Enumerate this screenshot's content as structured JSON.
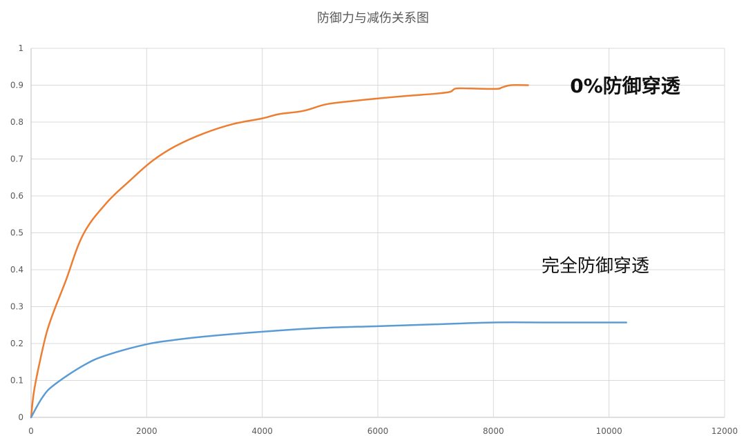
{
  "chart_data": {
    "type": "line",
    "title": "防御力与减伤关系图",
    "xlabel": "",
    "ylabel": "",
    "xlim": [
      0,
      12000
    ],
    "ylim": [
      0,
      1
    ],
    "x_ticks": [
      "0",
      "2000",
      "4000",
      "6000",
      "8000",
      "10000",
      "12000"
    ],
    "y_ticks": [
      "0",
      "0.1",
      "0.2",
      "0.3",
      "0.4",
      "0.5",
      "0.6",
      "0.7",
      "0.8",
      "0.9",
      "1"
    ],
    "grid": true,
    "legend": "none",
    "series": [
      {
        "annotation": "0%防御穿透",
        "color": "#ED7D31",
        "points": [
          [
            0,
            0
          ],
          [
            50,
            0.07
          ],
          [
            150,
            0.15
          ],
          [
            270,
            0.23
          ],
          [
            400,
            0.29
          ],
          [
            600,
            0.37
          ],
          [
            900,
            0.495
          ],
          [
            1300,
            0.58
          ],
          [
            1700,
            0.64
          ],
          [
            2100,
            0.695
          ],
          [
            2500,
            0.735
          ],
          [
            3000,
            0.77
          ],
          [
            3500,
            0.795
          ],
          [
            4000,
            0.81
          ],
          [
            4300,
            0.822
          ],
          [
            4700,
            0.83
          ],
          [
            5100,
            0.848
          ],
          [
            5500,
            0.856
          ],
          [
            6000,
            0.864
          ],
          [
            6500,
            0.871
          ],
          [
            7000,
            0.877
          ],
          [
            7250,
            0.882
          ],
          [
            7350,
            0.891
          ],
          [
            7600,
            0.891
          ],
          [
            8050,
            0.89
          ],
          [
            8150,
            0.894
          ],
          [
            8300,
            0.9
          ],
          [
            8600,
            0.9
          ]
        ]
      },
      {
        "annotation": "完全防御穿透",
        "color": "#5B9BD5",
        "points": [
          [
            0,
            0
          ],
          [
            200,
            0.055
          ],
          [
            400,
            0.088
          ],
          [
            900,
            0.14
          ],
          [
            1300,
            0.168
          ],
          [
            2000,
            0.198
          ],
          [
            2500,
            0.21
          ],
          [
            3000,
            0.219
          ],
          [
            4000,
            0.232
          ],
          [
            5000,
            0.242
          ],
          [
            6000,
            0.247
          ],
          [
            7000,
            0.252
          ],
          [
            8000,
            0.257
          ],
          [
            9000,
            0.257
          ],
          [
            10300,
            0.257
          ]
        ]
      }
    ]
  }
}
